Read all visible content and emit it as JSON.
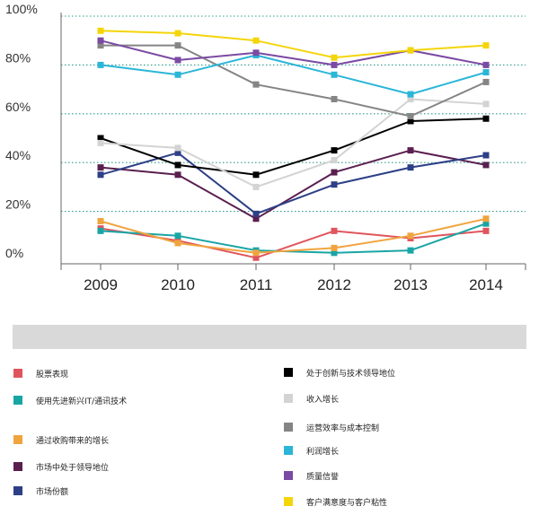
{
  "chart_data": {
    "type": "line",
    "x": [
      "2009",
      "2010",
      "2011",
      "2012",
      "2013",
      "2014"
    ],
    "ylim": [
      0,
      100
    ],
    "yticks": [
      "0%",
      "20%",
      "40%",
      "60%",
      "80%",
      "100%"
    ],
    "grid": true,
    "grid_style": "dotted-teal",
    "legend_position": "bottom",
    "series": [
      {
        "name": "股票表现",
        "color": "#e0555d",
        "values": [
          13,
          8,
          1,
          12,
          9,
          12
        ]
      },
      {
        "name": "使用先进新兴IT/通讯技术",
        "color": "#1aa5a5",
        "values": [
          12,
          10,
          4,
          3,
          4,
          15
        ]
      },
      {
        "name": "通过收购带来的增长",
        "color": "#f0a43e",
        "values": [
          16,
          7,
          3,
          5,
          10,
          17
        ]
      },
      {
        "name": "市场中处于领导地位",
        "color": "#5a1f4f",
        "values": [
          38,
          35,
          17,
          36,
          45,
          39
        ]
      },
      {
        "name": "市场份额",
        "color": "#2d3f86",
        "values": [
          35,
          44,
          19,
          31,
          38,
          43
        ]
      },
      {
        "name": "处于创新与技术领导地位",
        "color": "#000000",
        "values": [
          50,
          39,
          35,
          45,
          57,
          58
        ]
      },
      {
        "name": "收入增长",
        "color": "#d3d3d3",
        "values": [
          48,
          46,
          30,
          41,
          66,
          64
        ]
      },
      {
        "name": "运营效率与成本控制",
        "color": "#858585",
        "values": [
          88,
          88,
          72,
          66,
          59,
          73
        ]
      },
      {
        "name": "利润增长",
        "color": "#2bb6d8",
        "values": [
          80,
          76,
          84,
          76,
          68,
          77
        ]
      },
      {
        "name": "质量信誉",
        "color": "#7b4aa3",
        "values": [
          90,
          82,
          85,
          80,
          86,
          80
        ]
      },
      {
        "name": "客户满意度与客户粘性",
        "color": "#f4d508",
        "values": [
          94,
          93,
          90,
          83,
          86,
          88
        ]
      }
    ]
  }
}
